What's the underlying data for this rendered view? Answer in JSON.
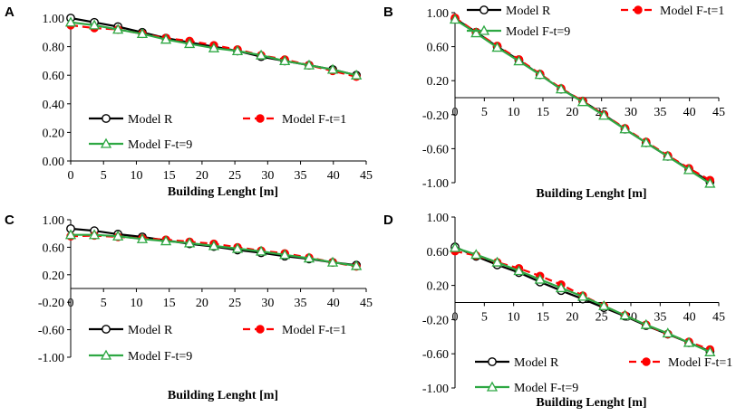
{
  "chart_data": [
    {
      "type": "line",
      "panel": "A",
      "xlabel": "Building Lenght [m]",
      "xlim": [
        0,
        45
      ],
      "xticks": [
        0,
        5,
        10,
        15,
        20,
        25,
        30,
        35,
        40,
        45
      ],
      "ylim": [
        0,
        1
      ],
      "yticks": [
        "0.00",
        "0.20",
        "0.40",
        "0.60",
        "0.80",
        "1.00"
      ],
      "grid": false,
      "x": [
        0,
        3.6,
        7.2,
        10.9,
        14.5,
        18.1,
        21.8,
        25.4,
        29,
        32.6,
        36.3,
        39.9,
        43.5
      ],
      "series": [
        {
          "name": "Model R",
          "values": [
            1.0,
            0.97,
            0.94,
            0.9,
            0.86,
            0.83,
            0.8,
            0.77,
            0.73,
            0.7,
            0.67,
            0.64,
            0.6
          ]
        },
        {
          "name": "Model F-t=1",
          "values": [
            0.95,
            0.93,
            0.92,
            0.89,
            0.86,
            0.84,
            0.81,
            0.78,
            0.74,
            0.71,
            0.67,
            0.63,
            0.59
          ]
        },
        {
          "name": "Model F-t=9",
          "values": [
            0.97,
            0.95,
            0.92,
            0.89,
            0.85,
            0.82,
            0.79,
            0.77,
            0.74,
            0.7,
            0.67,
            0.64,
            0.6
          ]
        }
      ],
      "legend": {
        "rows": [
          [
            "Model R",
            "Model F-t=1"
          ],
          [
            "Model F-t=9"
          ]
        ],
        "placement": "lower-left"
      }
    },
    {
      "type": "line",
      "panel": "B",
      "xlabel": "Building Lenght [m]",
      "xlim": [
        0,
        45
      ],
      "xticks": [
        0,
        5,
        10,
        15,
        20,
        25,
        30,
        35,
        40,
        45
      ],
      "ylim": [
        -1,
        1
      ],
      "yticks": [
        "1.00",
        "0.60",
        "0.20",
        "-0.20",
        "-0.60",
        "-1.00"
      ],
      "grid": false,
      "x": [
        0,
        3.6,
        7.2,
        10.9,
        14.5,
        18.1,
        21.8,
        25.4,
        29,
        32.6,
        36.3,
        39.9,
        43.5
      ],
      "series": [
        {
          "name": "Model R",
          "values": [
            0.93,
            0.77,
            0.6,
            0.44,
            0.27,
            0.1,
            -0.04,
            -0.2,
            -0.37,
            -0.53,
            -0.69,
            -0.84,
            -0.99
          ]
        },
        {
          "name": "Model F-t=1",
          "values": [
            0.94,
            0.77,
            0.61,
            0.45,
            0.28,
            0.11,
            -0.04,
            -0.2,
            -0.36,
            -0.52,
            -0.68,
            -0.83,
            -0.97
          ]
        },
        {
          "name": "Model F-t=9",
          "values": [
            0.92,
            0.76,
            0.59,
            0.43,
            0.27,
            0.1,
            -0.05,
            -0.21,
            -0.37,
            -0.53,
            -0.69,
            -0.85,
            -1.01
          ]
        }
      ],
      "legend": {
        "rows": [
          [
            "Model R",
            "Model F-t=1"
          ],
          [
            "Model F-t=9"
          ]
        ],
        "placement": "top-right"
      }
    },
    {
      "type": "line",
      "panel": "C",
      "xlabel": "Building Lenght [m]",
      "xlim": [
        0,
        45
      ],
      "xticks": [
        0,
        5,
        10,
        15,
        20,
        25,
        30,
        35,
        40,
        45
      ],
      "ylim": [
        -1,
        1
      ],
      "yticks": [
        "1.00",
        "0.60",
        "0.20",
        "-0.20",
        "-0.60",
        "-1.00"
      ],
      "grid": false,
      "x": [
        0,
        3.6,
        7.2,
        10.9,
        14.5,
        18.1,
        21.8,
        25.4,
        29,
        32.6,
        36.3,
        39.9,
        43.5
      ],
      "series": [
        {
          "name": "Model R",
          "values": [
            0.87,
            0.84,
            0.79,
            0.75,
            0.7,
            0.65,
            0.61,
            0.56,
            0.52,
            0.47,
            0.43,
            0.38,
            0.34
          ]
        },
        {
          "name": "Model F-t=1",
          "values": [
            0.76,
            0.77,
            0.75,
            0.73,
            0.71,
            0.68,
            0.65,
            0.6,
            0.55,
            0.51,
            0.45,
            0.38,
            0.32
          ]
        },
        {
          "name": "Model F-t=9",
          "values": [
            0.78,
            0.78,
            0.76,
            0.72,
            0.69,
            0.66,
            0.62,
            0.58,
            0.54,
            0.49,
            0.44,
            0.38,
            0.33
          ]
        }
      ],
      "legend": {
        "rows": [
          [
            "Model R",
            "Model F-t=1"
          ],
          [
            "Model F-t=9"
          ]
        ],
        "placement": "lower-left"
      }
    },
    {
      "type": "line",
      "panel": "D",
      "xlabel": "Building Lenght [m]",
      "xlim": [
        0,
        45
      ],
      "xticks": [
        0,
        5,
        10,
        15,
        20,
        25,
        30,
        35,
        40,
        45
      ],
      "ylim": [
        -1,
        1
      ],
      "yticks": [
        "1.00",
        "0.60",
        "0.20",
        "-0.20",
        "-0.60",
        "-1.00"
      ],
      "grid": false,
      "x": [
        0,
        3.6,
        7.2,
        10.9,
        14.5,
        18.1,
        21.8,
        25.4,
        29,
        32.6,
        36.3,
        39.9,
        43.5
      ],
      "series": [
        {
          "name": "Model R",
          "values": [
            0.65,
            0.54,
            0.44,
            0.35,
            0.24,
            0.14,
            0.04,
            -0.06,
            -0.16,
            -0.27,
            -0.37,
            -0.47,
            -0.57
          ]
        },
        {
          "name": "Model F-t=1",
          "values": [
            0.6,
            0.55,
            0.47,
            0.4,
            0.31,
            0.21,
            0.08,
            -0.04,
            -0.15,
            -0.26,
            -0.37,
            -0.46,
            -0.55
          ]
        },
        {
          "name": "Model F-t=9",
          "values": [
            0.64,
            0.56,
            0.47,
            0.37,
            0.27,
            0.17,
            0.07,
            -0.04,
            -0.15,
            -0.26,
            -0.36,
            -0.47,
            -0.58
          ]
        }
      ],
      "legend": {
        "rows": [
          [
            "Model R",
            "Model F-t=1"
          ],
          [
            "Model F-t=9"
          ]
        ],
        "placement": "lower-left"
      }
    }
  ],
  "series_styles": [
    {
      "name": "Model R",
      "color": "#000000",
      "dash": "solid",
      "marker": "open-circle"
    },
    {
      "name": "Model F-t=1",
      "color": "#ff0000",
      "dash": "dashed",
      "marker": "filled-circle"
    },
    {
      "name": "Model F-t=9",
      "color": "#2ea843",
      "dash": "solid",
      "marker": "open-triangle"
    }
  ]
}
